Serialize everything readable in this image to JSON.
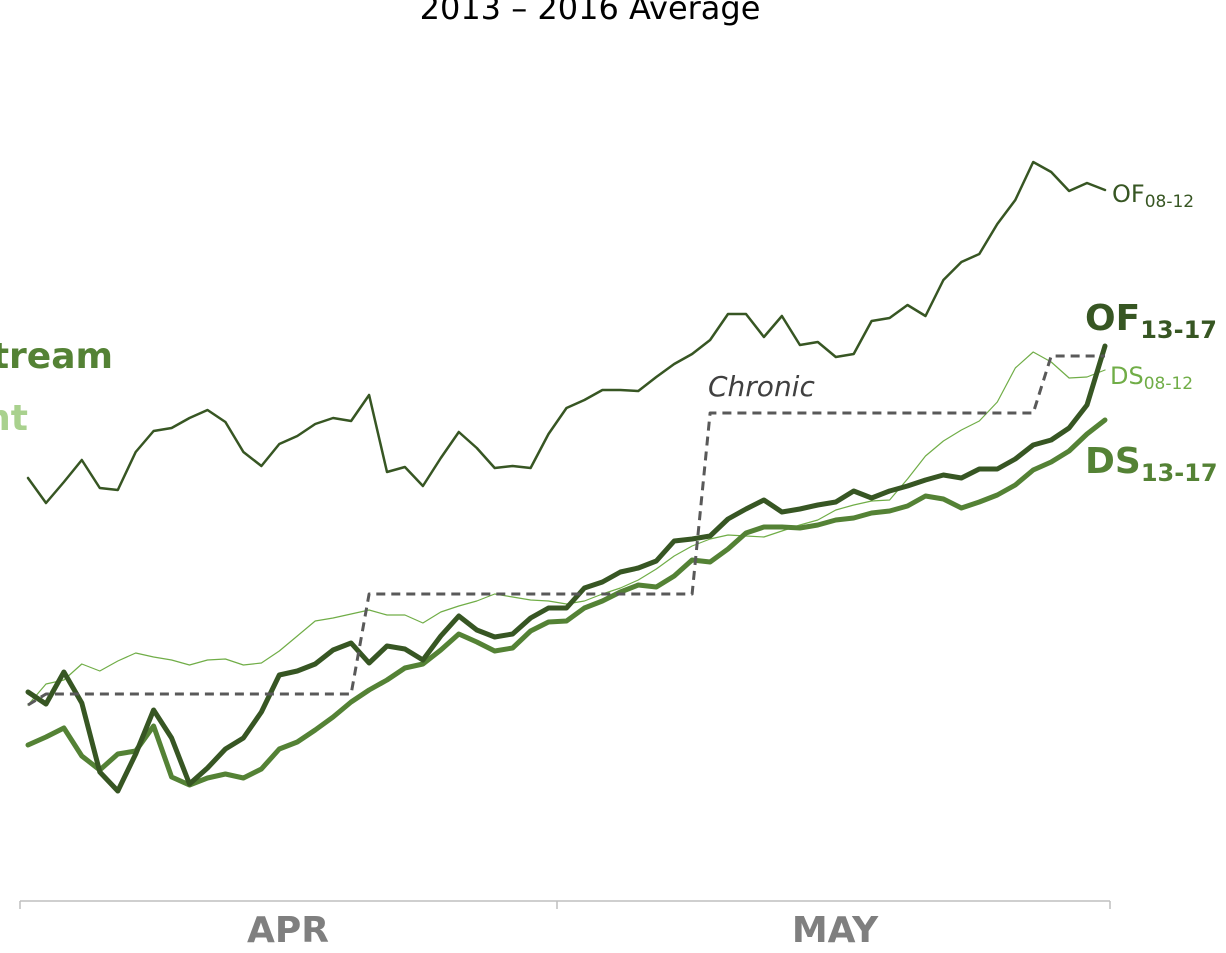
{
  "chart_data": {
    "type": "line",
    "title": "2013 – 2016 Average",
    "side_labels": [
      {
        "text": "tream",
        "color": "#548235"
      },
      {
        "text": "nt",
        "color": "#a9d18e"
      }
    ],
    "months": [
      "APR",
      "MAY"
    ],
    "ylim": [
      0,
      650
    ],
    "series": [
      {
        "label": "OF",
        "label_sub": "08-12",
        "color": "#375623",
        "width": 2.5,
        "bold": false,
        "values": [
          322,
          297,
          318,
          340,
          312,
          310,
          348,
          369,
          372,
          382,
          390,
          378,
          348,
          334,
          356,
          364,
          376,
          382,
          379,
          405,
          328,
          333,
          314,
          342,
          368,
          352,
          332,
          334,
          332,
          366,
          392,
          400,
          410,
          410,
          409,
          423,
          436,
          446,
          460,
          486,
          486,
          463,
          484,
          455,
          458,
          443,
          446,
          479,
          482,
          495,
          484,
          520,
          538,
          546,
          576,
          600,
          638,
          628,
          609,
          617,
          610
        ]
      },
      {
        "label": "DS",
        "label_sub": "08-12",
        "color": "#70ad47",
        "width": 1.2,
        "bold": false,
        "values": [
          95,
          116,
          120,
          136,
          129,
          139,
          147,
          143,
          140,
          135,
          140,
          141,
          135,
          137,
          149,
          164,
          179,
          182,
          186,
          190,
          185,
          185,
          177,
          188,
          194,
          199,
          206,
          203,
          200,
          199,
          196,
          199,
          206,
          212,
          220,
          231,
          244,
          254,
          261,
          265,
          264,
          263,
          269,
          275,
          280,
          290,
          295,
          299,
          300,
          321,
          344,
          359,
          370,
          379,
          398,
          432,
          448,
          438,
          422,
          423,
          430
        ]
      },
      {
        "label": "DS",
        "label_sub": "13-17",
        "color": "#548235",
        "width": 5,
        "bold": true,
        "values": [
          55,
          63,
          72,
          44,
          30,
          46,
          49,
          74,
          23,
          15,
          22,
          26,
          22,
          31,
          51,
          58,
          70,
          83,
          98,
          110,
          120,
          132,
          136,
          150,
          166,
          158,
          149,
          152,
          169,
          178,
          179,
          192,
          199,
          208,
          215,
          213,
          224,
          240,
          238,
          251,
          267,
          273,
          273,
          272,
          275,
          280,
          282,
          287,
          289,
          294,
          304,
          301,
          292,
          298,
          305,
          315,
          330,
          338,
          349,
          366,
          380
        ]
      },
      {
        "label": "OF",
        "label_sub": "13-17",
        "color": "#375623",
        "width": 5,
        "bold": true,
        "values": [
          108,
          96,
          128,
          97,
          28,
          9,
          46,
          90,
          62,
          16,
          32,
          51,
          62,
          88,
          125,
          129,
          136,
          150,
          157,
          137,
          154,
          151,
          140,
          164,
          184,
          170,
          163,
          166,
          182,
          192,
          192,
          212,
          218,
          228,
          232,
          239,
          259,
          261,
          264,
          281,
          291,
          300,
          288,
          291,
          295,
          298,
          309,
          302,
          309,
          314,
          320,
          325,
          322,
          331,
          331,
          341,
          355,
          360,
          372,
          395,
          454
        ]
      },
      {
        "label": "Chronic",
        "color": "#595959",
        "width": 3,
        "dashed": true,
        "italic": true,
        "values": [
          95,
          106,
          106,
          106,
          106,
          106,
          106,
          106,
          106,
          106,
          106,
          106,
          106,
          106,
          106,
          106,
          106,
          106,
          106,
          206,
          206,
          206,
          206,
          206,
          206,
          206,
          206,
          206,
          206,
          206,
          206,
          206,
          206,
          206,
          206,
          206,
          206,
          206,
          387,
          387,
          387,
          387,
          387,
          387,
          387,
          387,
          387,
          387,
          387,
          387,
          387,
          387,
          387,
          387,
          387,
          387,
          387,
          444,
          444,
          444,
          444
        ]
      }
    ]
  }
}
